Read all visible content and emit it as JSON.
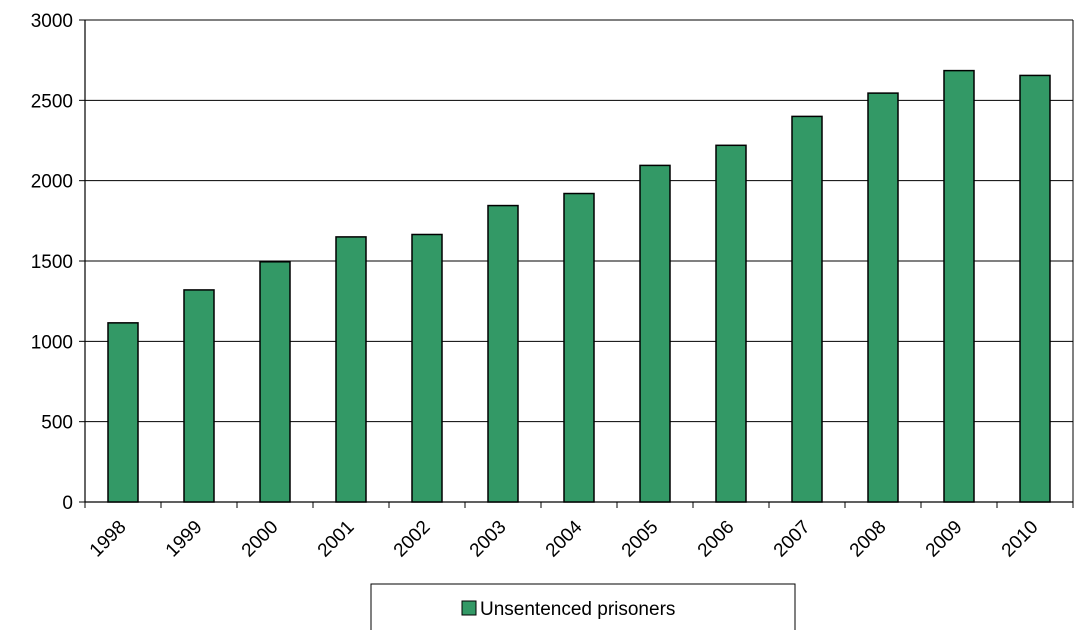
{
  "chart_data": {
    "type": "bar",
    "title": "",
    "xlabel": "",
    "ylabel": "",
    "categories": [
      "1998",
      "1999",
      "2000",
      "2001",
      "2002",
      "2003",
      "2004",
      "2005",
      "2006",
      "2007",
      "2008",
      "2009",
      "2010"
    ],
    "series": [
      {
        "name": "Unsentenced prisoners",
        "color": "#339966",
        "values": [
          1115,
          1320,
          1495,
          1650,
          1665,
          1845,
          1920,
          2095,
          2220,
          2400,
          2545,
          2685,
          2655
        ]
      }
    ],
    "ylim": [
      0,
      3000
    ],
    "yticks": [
      0,
      500,
      1000,
      1500,
      2000,
      2500,
      3000
    ],
    "grid": true,
    "legend_position": "bottom"
  }
}
